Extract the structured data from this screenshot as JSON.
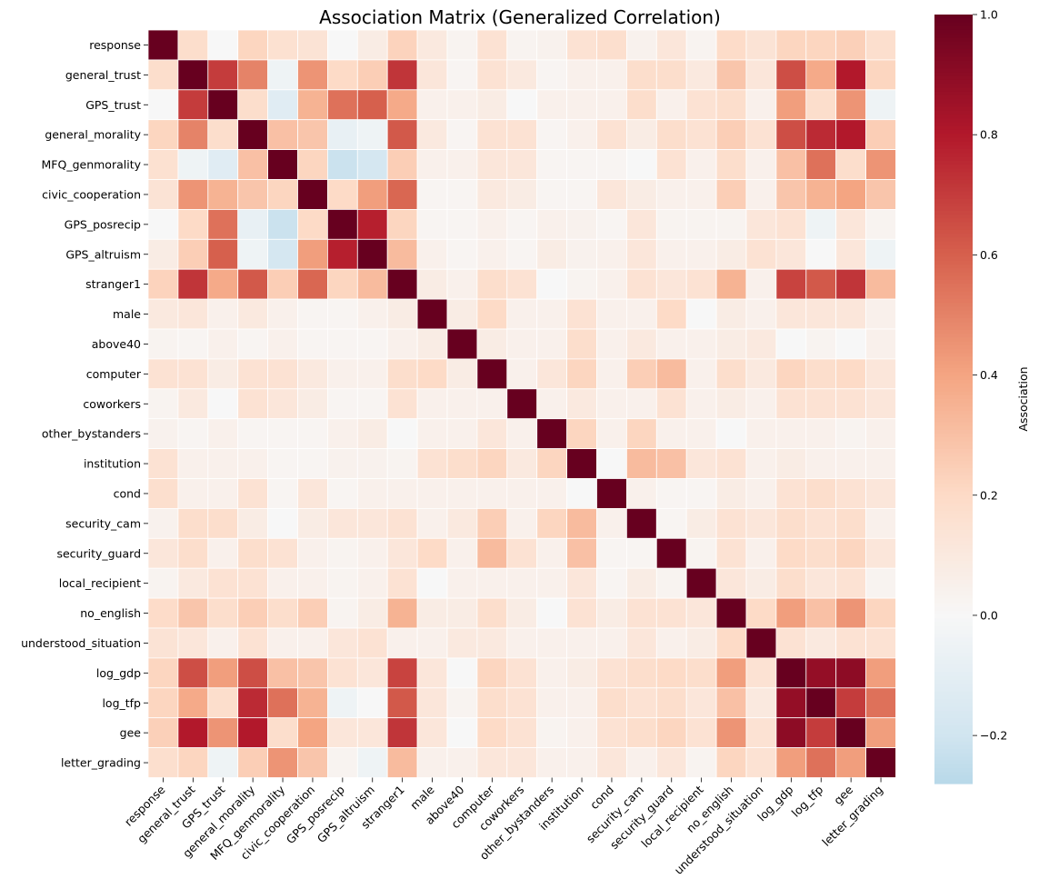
{
  "chart_data": {
    "type": "heatmap",
    "title": "Association Matrix (Generalized Correlation)",
    "variables": [
      "response",
      "general_trust",
      "GPS_trust",
      "general_morality",
      "MFQ_genmorality",
      "civic_cooperation",
      "GPS_posrecip",
      "GPS_altruism",
      "stranger1",
      "male",
      "above40",
      "computer",
      "coworkers",
      "other_bystanders",
      "institution",
      "cond",
      "security_cam",
      "security_guard",
      "local_recipient",
      "no_english",
      "understood_situation",
      "log_gdp",
      "log_tfp",
      "gee",
      "letter_grading"
    ],
    "matrix": [
      [
        1.0,
        0.18,
        0.0,
        0.22,
        0.16,
        0.14,
        0.0,
        0.08,
        0.23,
        0.1,
        0.03,
        0.15,
        0.03,
        0.04,
        0.15,
        0.17,
        0.04,
        0.12,
        0.03,
        0.19,
        0.14,
        0.22,
        0.22,
        0.24,
        0.17
      ],
      [
        0.18,
        1.0,
        0.7,
        0.5,
        -0.05,
        0.45,
        0.2,
        0.25,
        0.72,
        0.12,
        0.02,
        0.15,
        0.1,
        0.02,
        0.05,
        0.05,
        0.18,
        0.18,
        0.1,
        0.28,
        0.12,
        0.65,
        0.38,
        0.8,
        0.22
      ],
      [
        0.0,
        0.7,
        1.0,
        0.18,
        -0.12,
        0.35,
        0.55,
        0.6,
        0.38,
        0.05,
        0.05,
        0.08,
        0.0,
        0.05,
        0.05,
        0.05,
        0.18,
        0.05,
        0.15,
        0.18,
        0.05,
        0.42,
        0.18,
        0.45,
        -0.05
      ],
      [
        0.22,
        0.5,
        0.18,
        1.0,
        0.3,
        0.28,
        -0.08,
        -0.05,
        0.62,
        0.1,
        0.02,
        0.15,
        0.15,
        0.02,
        0.05,
        0.15,
        0.08,
        0.18,
        0.15,
        0.25,
        0.15,
        0.65,
        0.75,
        0.8,
        0.25
      ],
      [
        0.16,
        -0.05,
        -0.12,
        0.3,
        1.0,
        0.22,
        -0.22,
        -0.18,
        0.25,
        0.05,
        0.05,
        0.12,
        0.12,
        0.02,
        0.02,
        0.02,
        0.0,
        0.15,
        0.05,
        0.18,
        0.05,
        0.3,
        0.55,
        0.18,
        0.45
      ],
      [
        0.14,
        0.45,
        0.35,
        0.28,
        0.22,
        1.0,
        0.2,
        0.42,
        0.58,
        0.02,
        0.02,
        0.1,
        0.08,
        0.02,
        0.02,
        0.12,
        0.08,
        0.05,
        0.05,
        0.25,
        0.05,
        0.28,
        0.35,
        0.4,
        0.28
      ],
      [
        0.0,
        0.2,
        0.55,
        -0.08,
        -0.22,
        0.2,
        1.0,
        0.78,
        0.22,
        0.02,
        0.02,
        0.05,
        0.02,
        0.05,
        0.04,
        0.02,
        0.12,
        0.03,
        0.03,
        0.03,
        0.12,
        0.15,
        -0.05,
        0.12,
        0.03
      ],
      [
        0.08,
        0.25,
        0.6,
        -0.05,
        -0.18,
        0.42,
        0.78,
        1.0,
        0.32,
        0.05,
        0.02,
        0.05,
        0.02,
        0.08,
        0.04,
        0.05,
        0.12,
        0.05,
        0.05,
        0.08,
        0.15,
        0.12,
        0.0,
        0.12,
        -0.05
      ],
      [
        0.23,
        0.72,
        0.38,
        0.62,
        0.25,
        0.58,
        0.22,
        0.32,
        1.0,
        0.08,
        0.05,
        0.18,
        0.15,
        0.0,
        0.03,
        0.05,
        0.15,
        0.12,
        0.15,
        0.35,
        0.05,
        0.68,
        0.62,
        0.72,
        0.32
      ],
      [
        0.1,
        0.12,
        0.05,
        0.1,
        0.05,
        0.02,
        0.02,
        0.05,
        0.08,
        1.0,
        0.08,
        0.2,
        0.05,
        0.05,
        0.15,
        0.05,
        0.05,
        0.2,
        0.0,
        0.08,
        0.05,
        0.12,
        0.12,
        0.12,
        0.05
      ],
      [
        0.03,
        0.02,
        0.05,
        0.02,
        0.05,
        0.02,
        0.02,
        0.02,
        0.05,
        0.08,
        1.0,
        0.08,
        0.05,
        0.05,
        0.18,
        0.05,
        0.1,
        0.05,
        0.05,
        0.08,
        0.1,
        0.0,
        0.03,
        0.0,
        0.05
      ],
      [
        0.15,
        0.15,
        0.08,
        0.15,
        0.15,
        0.1,
        0.05,
        0.05,
        0.18,
        0.2,
        0.08,
        1.0,
        0.05,
        0.12,
        0.22,
        0.05,
        0.25,
        0.32,
        0.05,
        0.18,
        0.1,
        0.22,
        0.18,
        0.2,
        0.12
      ],
      [
        0.03,
        0.1,
        0.0,
        0.15,
        0.12,
        0.08,
        0.02,
        0.02,
        0.15,
        0.05,
        0.05,
        0.05,
        1.0,
        0.05,
        0.1,
        0.05,
        0.05,
        0.15,
        0.05,
        0.08,
        0.05,
        0.15,
        0.15,
        0.15,
        0.12
      ],
      [
        0.04,
        0.02,
        0.05,
        0.02,
        0.02,
        0.02,
        0.05,
        0.08,
        0.0,
        0.05,
        0.05,
        0.12,
        0.05,
        1.0,
        0.22,
        0.05,
        0.22,
        0.05,
        0.05,
        0.0,
        0.05,
        0.05,
        0.05,
        0.03,
        0.05
      ],
      [
        0.15,
        0.05,
        0.05,
        0.05,
        0.02,
        0.02,
        0.04,
        0.04,
        0.03,
        0.15,
        0.18,
        0.22,
        0.1,
        0.22,
        1.0,
        0.0,
        0.32,
        0.3,
        0.12,
        0.15,
        0.05,
        0.08,
        0.05,
        0.05,
        0.05
      ],
      [
        0.17,
        0.05,
        0.05,
        0.15,
        0.02,
        0.12,
        0.02,
        0.05,
        0.05,
        0.05,
        0.05,
        0.05,
        0.05,
        0.05,
        0.0,
        1.0,
        0.05,
        0.02,
        0.02,
        0.08,
        0.05,
        0.15,
        0.18,
        0.15,
        0.12
      ],
      [
        0.04,
        0.18,
        0.18,
        0.08,
        0.0,
        0.08,
        0.12,
        0.12,
        0.15,
        0.05,
        0.1,
        0.25,
        0.05,
        0.22,
        0.32,
        0.05,
        1.0,
        0.02,
        0.08,
        0.15,
        0.12,
        0.18,
        0.15,
        0.18,
        0.05
      ],
      [
        0.12,
        0.18,
        0.05,
        0.18,
        0.15,
        0.05,
        0.03,
        0.05,
        0.12,
        0.2,
        0.05,
        0.32,
        0.15,
        0.05,
        0.3,
        0.02,
        0.02,
        1.0,
        0.03,
        0.15,
        0.05,
        0.2,
        0.18,
        0.22,
        0.12
      ],
      [
        0.03,
        0.1,
        0.15,
        0.15,
        0.05,
        0.05,
        0.03,
        0.05,
        0.15,
        0.0,
        0.05,
        0.05,
        0.05,
        0.05,
        0.12,
        0.02,
        0.08,
        0.03,
        1.0,
        0.12,
        0.08,
        0.18,
        0.12,
        0.15,
        0.03
      ],
      [
        0.19,
        0.28,
        0.18,
        0.25,
        0.18,
        0.25,
        0.03,
        0.08,
        0.35,
        0.08,
        0.08,
        0.18,
        0.08,
        0.0,
        0.15,
        0.08,
        0.15,
        0.15,
        0.12,
        1.0,
        0.2,
        0.42,
        0.3,
        0.45,
        0.22
      ],
      [
        0.14,
        0.12,
        0.05,
        0.15,
        0.05,
        0.05,
        0.12,
        0.15,
        0.05,
        0.05,
        0.1,
        0.1,
        0.05,
        0.05,
        0.05,
        0.05,
        0.12,
        0.05,
        0.08,
        0.2,
        1.0,
        0.15,
        0.1,
        0.15,
        0.15
      ],
      [
        0.22,
        0.65,
        0.42,
        0.65,
        0.3,
        0.28,
        0.15,
        0.12,
        0.68,
        0.12,
        0.0,
        0.22,
        0.15,
        0.05,
        0.08,
        0.15,
        0.18,
        0.2,
        0.18,
        0.42,
        0.15,
        1.0,
        0.88,
        0.9,
        0.42
      ],
      [
        0.22,
        0.38,
        0.18,
        0.75,
        0.55,
        0.35,
        -0.05,
        0.0,
        0.62,
        0.12,
        0.03,
        0.18,
        0.15,
        0.05,
        0.05,
        0.18,
        0.15,
        0.18,
        0.12,
        0.3,
        0.1,
        0.88,
        1.0,
        0.7,
        0.55
      ],
      [
        0.24,
        0.8,
        0.45,
        0.8,
        0.18,
        0.4,
        0.12,
        0.12,
        0.72,
        0.12,
        0.0,
        0.2,
        0.15,
        0.03,
        0.05,
        0.15,
        0.18,
        0.22,
        0.15,
        0.45,
        0.15,
        0.9,
        0.7,
        1.0,
        0.42
      ],
      [
        0.17,
        0.22,
        -0.05,
        0.25,
        0.45,
        0.28,
        0.03,
        -0.05,
        0.32,
        0.05,
        0.05,
        0.12,
        0.12,
        0.05,
        0.05,
        0.12,
        0.05,
        0.12,
        0.03,
        0.22,
        0.15,
        0.42,
        0.55,
        0.42,
        1.0
      ]
    ],
    "colorbar": {
      "label": "Association",
      "vmin": -0.28,
      "vmax": 1.0,
      "ticks": [
        -0.2,
        0.0,
        0.2,
        0.4,
        0.6,
        0.8,
        1.0
      ],
      "tick_labels": [
        "−0.2",
        "0.0",
        "0.2",
        "0.4",
        "0.6",
        "0.8",
        "1.0"
      ]
    },
    "colormap": {
      "name": "RdBu_r",
      "center": 0.0,
      "colors": [
        "#053061",
        "#2166ac",
        "#4393c3",
        "#92c5de",
        "#d1e5f0",
        "#f7f7f7",
        "#fddbc7",
        "#f4a582",
        "#d6604d",
        "#b2182b",
        "#67001f"
      ]
    }
  }
}
